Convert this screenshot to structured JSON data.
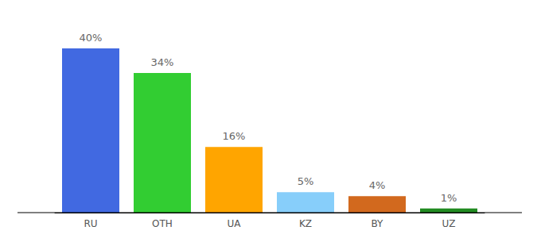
{
  "chart_data": {
    "type": "bar",
    "categories": [
      "RU",
      "OTH",
      "UA",
      "KZ",
      "BY",
      "UZ"
    ],
    "values": [
      40,
      34,
      16,
      5,
      4,
      1
    ],
    "value_labels": [
      "40%",
      "34%",
      "16%",
      "5%",
      "4%",
      "1%"
    ],
    "colors": [
      "#4169e1",
      "#32cd32",
      "#ffa500",
      "#87cefa",
      "#d2691e",
      "#228b22"
    ],
    "ylim": [
      0,
      40
    ],
    "grid": false,
    "data_labels": true,
    "tick_labels": "x"
  }
}
